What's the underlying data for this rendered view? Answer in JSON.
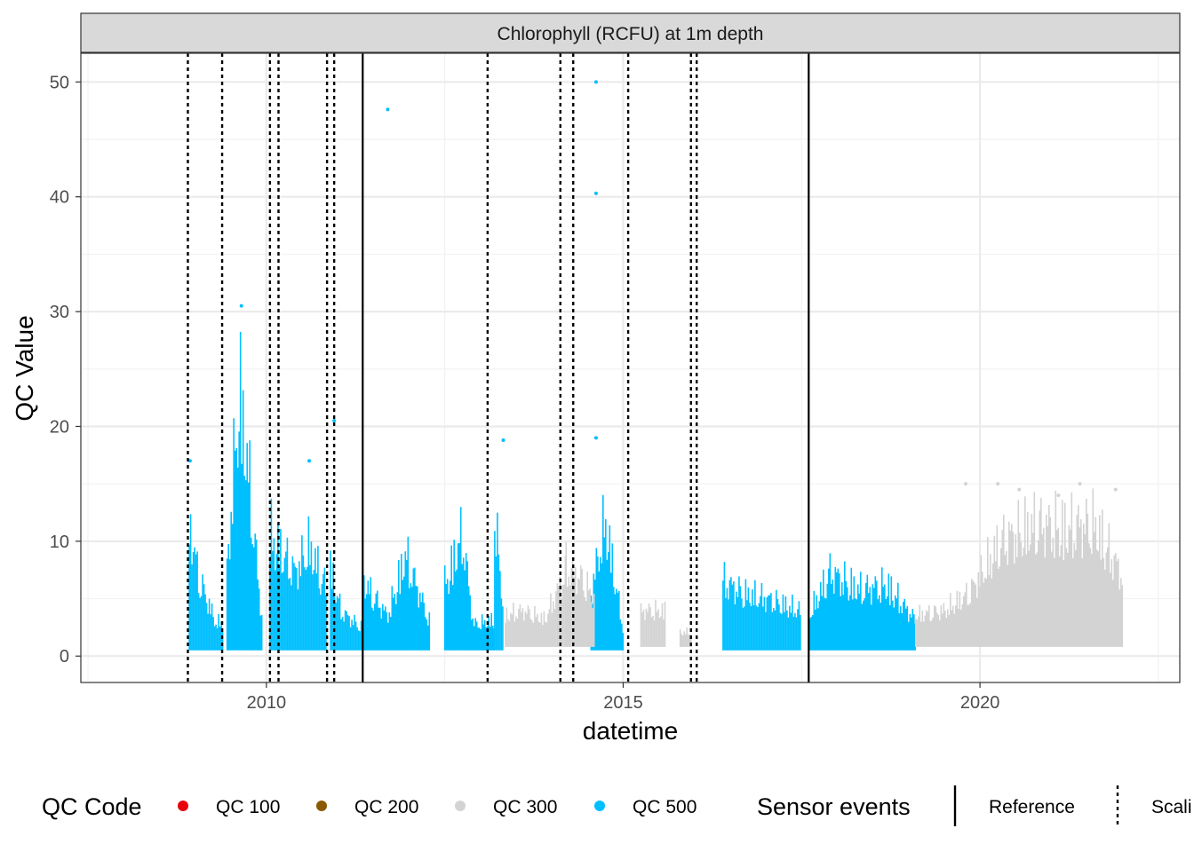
{
  "chart_data": {
    "type": "scatter",
    "title": "Chlorophyll (RCFU) at 1m depth",
    "xlabel": "datetime",
    "ylabel": "QC Value",
    "xlim": [
      2007.4,
      2022.8
    ],
    "ylim": [
      -2.3,
      52.5
    ],
    "x_ticks": [
      {
        "value": 2010,
        "label": "2010"
      },
      {
        "value": 2015,
        "label": "2015"
      },
      {
        "value": 2020,
        "label": "2020"
      }
    ],
    "y_ticks": [
      {
        "value": 0,
        "label": "0"
      },
      {
        "value": 10,
        "label": "10"
      },
      {
        "value": 20,
        "label": "20"
      },
      {
        "value": 30,
        "label": "30"
      },
      {
        "value": 40,
        "label": "40"
      },
      {
        "value": 50,
        "label": "50"
      }
    ],
    "grid": true,
    "legend_position": "bottom",
    "qc_legend": {
      "title": "QC Code",
      "items": [
        {
          "label": "QC 100",
          "color": "#e8000b"
        },
        {
          "label": "QC 200",
          "color": "#8b5a00"
        },
        {
          "label": "QC 300",
          "color": "#d3d3d3"
        },
        {
          "label": "QC 500",
          "color": "#00bfff"
        }
      ]
    },
    "event_legend": {
      "title": "Sensor events",
      "items": [
        {
          "label": "Reference",
          "line": "solid"
        },
        {
          "label": "Scali",
          "line": "dotted"
        }
      ]
    },
    "sensor_events": {
      "reference": [
        2011.35,
        2017.6
      ],
      "scaling": [
        2008.9,
        2009.38,
        2010.05,
        2010.17,
        2010.85,
        2010.95,
        2013.1,
        2014.12,
        2014.3,
        2015.07,
        2015.95,
        2016.03
      ]
    },
    "series": [
      {
        "name": "QC 500",
        "color": "#00bfff",
        "segments": [
          {
            "x": [
              2008.92,
              2009.05,
              2009.3,
              2009.4
            ],
            "y": [
              15.5,
              9.0,
              3.5,
              4.0
            ]
          },
          {
            "x": [
              2009.45,
              2009.62,
              2009.75,
              2009.95
            ],
            "y": [
              10.0,
              30.5,
              21.0,
              3.0
            ]
          },
          {
            "x": [
              2010.05,
              2010.4,
              2010.6,
              2010.85
            ],
            "y": [
              14.0,
              9.5,
              12.5,
              7.5
            ]
          },
          {
            "x": [
              2010.9,
              2011.05,
              2011.35
            ],
            "y": [
              10.0,
              5.0,
              3.0
            ]
          },
          {
            "x": [
              2011.35,
              2011.7,
              2011.95,
              2012.3
            ],
            "y": [
              8.5,
              4.5,
              11.5,
              3.5
            ]
          },
          {
            "x": [
              2012.5,
              2012.75,
              2012.9,
              2013.2
            ],
            "y": [
              8.0,
              14.0,
              3.5,
              4.0
            ]
          },
          {
            "x": [
              2013.2,
              2013.32
            ],
            "y": [
              16.0,
              6.0
            ]
          },
          {
            "x": [
              2014.55,
              2014.75,
              2015.0
            ],
            "y": [
              7.0,
              15.5,
              3.0
            ]
          },
          {
            "x": [
              2016.4,
              2016.7,
              2017.0,
              2017.5
            ],
            "y": [
              8.5,
              7.0,
              6.5,
              5.0
            ]
          },
          {
            "x": [
              2017.6,
              2017.9,
              2018.3,
              2018.7,
              2019.1
            ],
            "y": [
              4.5,
              9.5,
              7.5,
              8.0,
              4.0
            ]
          }
        ],
        "outliers": [
          {
            "x": 2011.7,
            "y": 47.6
          },
          {
            "x": 2014.62,
            "y": 50.0
          },
          {
            "x": 2014.62,
            "y": 40.3
          },
          {
            "x": 2014.62,
            "y": 19.0
          },
          {
            "x": 2013.32,
            "y": 18.8
          },
          {
            "x": 2010.95,
            "y": 20.5
          },
          {
            "x": 2010.6,
            "y": 17.0
          },
          {
            "x": 2009.65,
            "y": 30.5
          },
          {
            "x": 2008.93,
            "y": 17.0
          }
        ]
      },
      {
        "name": "QC 300",
        "color": "#d3d3d3",
        "segments": [
          {
            "x": [
              2013.35,
              2013.6,
              2013.9,
              2014.2
            ],
            "y": [
              4.5,
              5.0,
              4.0,
              9.5
            ]
          },
          {
            "x": [
              2014.2,
              2014.45,
              2014.6
            ],
            "y": [
              10.0,
              8.5,
              6.0
            ]
          },
          {
            "x": [
              2015.25,
              2015.6
            ],
            "y": [
              5.0,
              5.0
            ]
          },
          {
            "x": [
              2015.8,
              2015.95
            ],
            "y": [
              2.5,
              2.5
            ]
          },
          {
            "x": [
              2019.1,
              2019.5,
              2019.85,
              2020.3,
              2020.8,
              2021.2,
              2021.6,
              2022.0
            ],
            "y": [
              4.5,
              5.0,
              7.0,
              13.0,
              15.0,
              14.5,
              15.0,
              9.0
            ]
          }
        ],
        "outliers": [
          {
            "x": 2019.8,
            "y": 15.0
          },
          {
            "x": 2020.25,
            "y": 15.0
          },
          {
            "x": 2020.55,
            "y": 14.5
          },
          {
            "x": 2021.1,
            "y": 14.0
          },
          {
            "x": 2021.4,
            "y": 15.0
          },
          {
            "x": 2021.9,
            "y": 14.5
          }
        ]
      }
    ]
  }
}
